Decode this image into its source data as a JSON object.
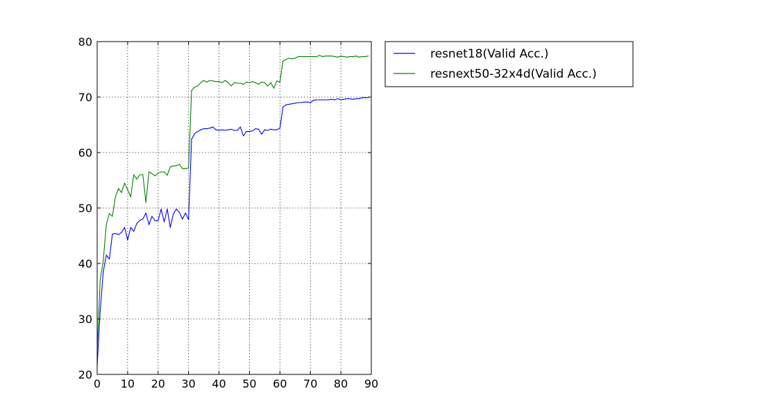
{
  "chart_data": {
    "type": "line",
    "title": "",
    "xlabel": "",
    "ylabel": "",
    "xlim": [
      0,
      90
    ],
    "ylim": [
      20,
      80
    ],
    "xticks": [
      0,
      10,
      20,
      30,
      40,
      50,
      60,
      70,
      80,
      90
    ],
    "yticks": [
      20,
      30,
      40,
      50,
      60,
      70,
      80
    ],
    "grid": true,
    "legend_position": "outside-right",
    "series": [
      {
        "name": "resnet18(Valid Acc.)",
        "color": "#0000ff",
        "x": [
          0,
          1,
          2,
          3,
          4,
          5,
          6,
          7,
          8,
          9,
          10,
          11,
          12,
          13,
          14,
          15,
          16,
          17,
          18,
          19,
          20,
          21,
          22,
          23,
          24,
          25,
          26,
          27,
          28,
          29,
          30,
          31,
          32,
          33,
          34,
          35,
          36,
          37,
          38,
          39,
          40,
          41,
          42,
          43,
          44,
          45,
          46,
          47,
          48,
          49,
          50,
          51,
          52,
          53,
          54,
          55,
          56,
          57,
          58,
          59,
          60,
          61,
          62,
          63,
          64,
          65,
          66,
          67,
          68,
          69,
          70,
          71,
          72,
          73,
          74,
          75,
          76,
          77,
          78,
          79,
          80,
          81,
          82,
          83,
          84,
          85,
          86,
          87,
          88,
          89
        ],
        "values": [
          21.5,
          31.5,
          38.5,
          41.5,
          40.8,
          45.3,
          45.4,
          45.2,
          45.6,
          46.5,
          44.2,
          46.5,
          45.8,
          47.2,
          47.8,
          48.0,
          49.1,
          47.0,
          48.5,
          47.7,
          47.7,
          49.8,
          47.5,
          49.8,
          46.5,
          48.9,
          49.8,
          49.2,
          48.0,
          49.1,
          47.9,
          62.4,
          63.4,
          63.8,
          64.1,
          64.3,
          64.3,
          64.4,
          64.6,
          64.1,
          64.0,
          64.1,
          64.0,
          64.1,
          64.2,
          64.0,
          64.0,
          64.6,
          63.0,
          63.8,
          63.8,
          63.9,
          64.3,
          64.2,
          63.3,
          64.1,
          64.0,
          64.2,
          64.1,
          64.1,
          64.4,
          68.2,
          68.6,
          68.7,
          68.8,
          68.9,
          69.0,
          69.0,
          69.1,
          69.1,
          69.0,
          69.4,
          69.5,
          69.5,
          69.5,
          69.5,
          69.5,
          69.6,
          69.5,
          69.7,
          69.5,
          69.6,
          69.7,
          69.7,
          69.6,
          69.7,
          69.7,
          69.9,
          69.9,
          69.9
        ]
      },
      {
        "name": "resnext50-32x4d(Valid Acc.)",
        "color": "#008000",
        "x": [
          0,
          1,
          2,
          3,
          4,
          5,
          6,
          7,
          8,
          9,
          10,
          11,
          12,
          13,
          14,
          15,
          16,
          17,
          18,
          19,
          20,
          21,
          22,
          23,
          24,
          25,
          26,
          27,
          28,
          29,
          30,
          31,
          32,
          33,
          34,
          35,
          36,
          37,
          38,
          39,
          40,
          41,
          42,
          43,
          44,
          45,
          46,
          47,
          48,
          49,
          50,
          51,
          52,
          53,
          54,
          55,
          56,
          57,
          58,
          59,
          60,
          61,
          62,
          63,
          64,
          65,
          66,
          67,
          68,
          69,
          70,
          71,
          72,
          73,
          74,
          75,
          76,
          77,
          78,
          79,
          80,
          81,
          82,
          83,
          84,
          85,
          86,
          87,
          88,
          89
        ],
        "values": [
          24.5,
          37.0,
          40.5,
          47.0,
          49.0,
          48.5,
          52.0,
          53.5,
          52.8,
          54.5,
          53.3,
          52.0,
          56.0,
          55.2,
          56.0,
          56.0,
          51.0,
          56.5,
          56.2,
          55.8,
          56.3,
          56.5,
          56.5,
          55.9,
          57.4,
          57.6,
          57.6,
          57.9,
          57.1,
          57.1,
          57.2,
          71.2,
          71.8,
          72.0,
          72.6,
          73.0,
          72.7,
          73.0,
          72.9,
          72.8,
          72.8,
          72.6,
          73.0,
          72.6,
          72.0,
          72.6,
          72.5,
          72.5,
          72.3,
          72.7,
          72.6,
          72.8,
          72.6,
          72.3,
          72.7,
          72.6,
          72.0,
          72.6,
          71.6,
          72.9,
          72.7,
          76.5,
          76.8,
          77.0,
          76.9,
          77.0,
          77.3,
          77.3,
          77.3,
          77.3,
          77.3,
          77.3,
          77.3,
          77.5,
          77.3,
          77.4,
          77.4,
          77.4,
          77.3,
          77.2,
          77.4,
          77.3,
          77.2,
          77.3,
          77.3,
          77.4,
          77.2,
          77.3,
          77.3,
          77.4
        ]
      }
    ]
  }
}
